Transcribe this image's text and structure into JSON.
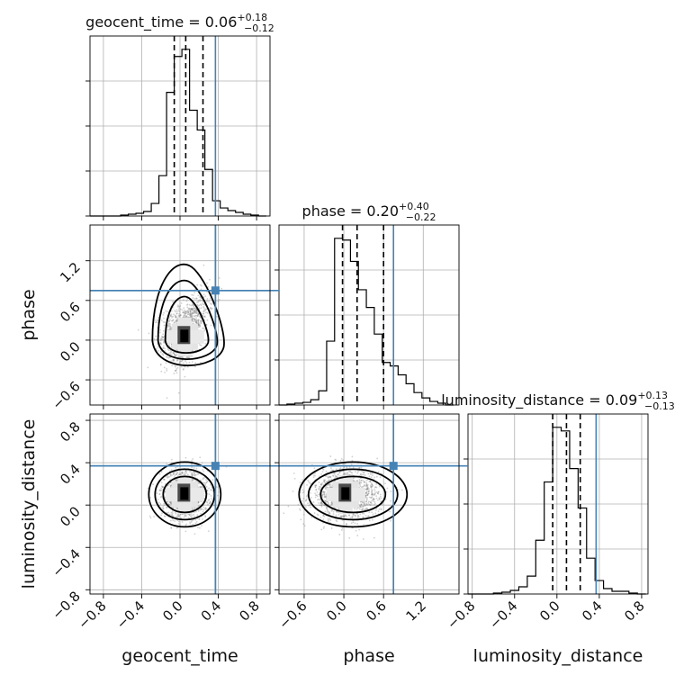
{
  "chart_data": {
    "type": "corner",
    "parameters": [
      "geocent_time",
      "phase",
      "luminosity_distance"
    ],
    "truth": {
      "geocent_time": 0.37,
      "phase": 0.75,
      "luminosity_distance": 0.37
    },
    "truth_color": "#4682b4",
    "grid": true,
    "titles": [
      {
        "param": "geocent_time",
        "prefix": "geocent_time = ",
        "value": "0.06",
        "plus": "+0.18",
        "minus": "−0.12"
      },
      {
        "param": "phase",
        "prefix": "phase = ",
        "value": "0.20",
        "plus": "+0.40",
        "minus": "−0.22"
      },
      {
        "param": "luminosity_distance",
        "prefix": "luminosity_distance = ",
        "value": "0.09",
        "plus": "+0.13",
        "minus": "−0.13"
      }
    ],
    "axis_labels": {
      "geocent_time": "geocent_time",
      "phase": "phase",
      "luminosity_distance": "luminosity_distance"
    },
    "ranges": {
      "geocent_time": [
        -0.94,
        0.94
      ],
      "phase": [
        -0.98,
        1.74
      ],
      "luminosity_distance": [
        -0.84,
        0.86
      ]
    },
    "ticks": {
      "geocent_time": [
        "−0.8",
        "−0.4",
        "0.0",
        "0.4",
        "0.8"
      ],
      "phase": [
        "−0.6",
        "0.0",
        "0.6",
        "1.2"
      ],
      "luminosity_distance": [
        "−0.8",
        "−0.4",
        "0.0",
        "0.4",
        "0.8"
      ]
    },
    "tick_values": {
      "geocent_time": [
        -0.8,
        -0.4,
        0.0,
        0.4,
        0.8
      ],
      "phase": [
        -0.6,
        0.0,
        0.6,
        1.2
      ],
      "luminosity_distance": [
        -0.8,
        -0.4,
        0.0,
        0.4,
        0.8
      ]
    },
    "histograms": {
      "geocent_time": {
        "quantiles": [
          -0.06,
          0.06,
          0.24
        ],
        "bins": [
          -0.94,
          -0.86,
          -0.78,
          -0.7,
          -0.62,
          -0.54,
          -0.46,
          -0.38,
          -0.3,
          -0.22,
          -0.14,
          -0.06,
          0.02,
          0.1,
          0.18,
          0.26,
          0.34,
          0.42,
          0.5,
          0.58,
          0.66,
          0.74,
          0.82,
          0.9
        ],
        "counts": [
          0,
          0,
          0,
          0,
          1,
          2,
          3,
          5,
          14,
          45,
          138,
          178,
          186,
          118,
          96,
          52,
          17,
          9,
          6,
          4,
          2,
          1,
          0
        ]
      },
      "phase": {
        "quantiles": [
          -0.02,
          0.2,
          0.6
        ],
        "bins": [
          -0.98,
          -0.86,
          -0.74,
          -0.62,
          -0.5,
          -0.38,
          -0.26,
          -0.14,
          -0.02,
          0.1,
          0.22,
          0.34,
          0.46,
          0.58,
          0.7,
          0.82,
          0.94,
          1.06,
          1.18,
          1.3,
          1.42,
          1.54,
          1.66
        ],
        "counts": [
          0,
          1,
          2,
          3,
          6,
          16,
          72,
          188,
          186,
          162,
          130,
          110,
          80,
          48,
          44,
          34,
          24,
          14,
          8,
          4,
          2,
          0
        ]
      },
      "luminosity_distance": {
        "quantiles": [
          -0.04,
          0.09,
          0.22
        ],
        "bins": [
          -0.84,
          -0.76,
          -0.68,
          -0.6,
          -0.52,
          -0.44,
          -0.36,
          -0.28,
          -0.2,
          -0.12,
          -0.04,
          0.04,
          0.12,
          0.2,
          0.28,
          0.36,
          0.44,
          0.52,
          0.6,
          0.68,
          0.76,
          0.84
        ],
        "counts": [
          0,
          0,
          0,
          1,
          2,
          4,
          8,
          20,
          60,
          125,
          186,
          182,
          140,
          96,
          40,
          15,
          6,
          3,
          3,
          1,
          0
        ]
      }
    },
    "panels_2d": [
      {
        "x": "geocent_time",
        "y": "phase"
      },
      {
        "x": "geocent_time",
        "y": "luminosity_distance"
      },
      {
        "x": "phase",
        "y": "luminosity_distance"
      }
    ],
    "posterior_centers": {
      "geocent_time_phase": [
        0.05,
        0.05
      ],
      "geocent_time_luminosity_distance": [
        0.05,
        0.1
      ],
      "phase_luminosity_distance": [
        0.03,
        0.1
      ]
    }
  }
}
